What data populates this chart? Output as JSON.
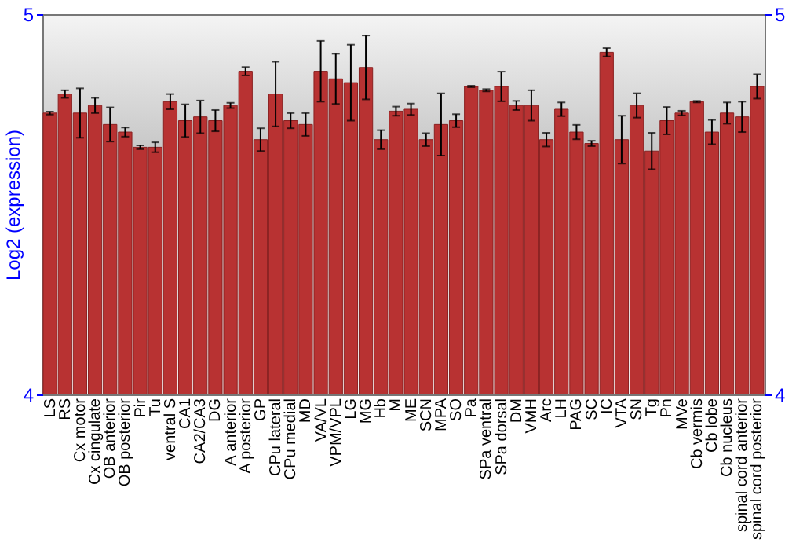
{
  "chart_data": {
    "type": "bar",
    "ylabel": "Log2 (expression)",
    "categories": [
      "LS",
      "RS",
      "Cx motor",
      "Cx cingulate",
      "OB anterior",
      "OB posterior",
      "Pir",
      "Tu",
      "ventral S",
      "CA1",
      "CA2/CA3",
      "DG",
      "A anterior",
      "A posterior",
      "GP",
      "CPu lateral",
      "CPu medial",
      "MD",
      "VA/VL",
      "VPM/VPL",
      "LG",
      "MG",
      "Hb",
      "M",
      "ME",
      "SCN",
      "MPA",
      "SO",
      "Pa",
      "SPa ventral",
      "SPa dorsal",
      "DM",
      "VMH",
      "Arc",
      "LH",
      "PAG",
      "SC",
      "IC",
      "VTA",
      "SN",
      "Tg",
      "Pn",
      "MVe",
      "Cb vermis",
      "Cb lobe",
      "Cb nucleus",
      "spinal cord anterior",
      "spinal cord posterior"
    ],
    "series": [
      {
        "color": "#b83232",
        "values": [
          4.74,
          4.79,
          4.74,
          4.76,
          4.71,
          4.69,
          4.65,
          4.65,
          4.77,
          4.72,
          4.73,
          4.72,
          4.76,
          4.85,
          4.67,
          4.79,
          4.72,
          4.71,
          4.85,
          4.83,
          4.82,
          4.86,
          4.67,
          4.745,
          4.75,
          4.67,
          4.71,
          4.72,
          4.81,
          4.8,
          4.81,
          4.76,
          4.76,
          4.67,
          4.75,
          4.69,
          4.66,
          4.9,
          4.67,
          4.76,
          4.64,
          4.72,
          4.74,
          4.77,
          4.69,
          4.74,
          4.73,
          4.81
        ],
        "errors": [
          0.004,
          0.01,
          0.065,
          0.02,
          0.045,
          0.012,
          0.005,
          0.013,
          0.02,
          0.043,
          0.043,
          0.028,
          0.007,
          0.011,
          0.03,
          0.085,
          0.02,
          0.03,
          0.08,
          0.066,
          0.1,
          0.084,
          0.025,
          0.012,
          0.015,
          0.017,
          0.082,
          0.017,
          0.002,
          0.003,
          0.039,
          0.012,
          0.04,
          0.018,
          0.018,
          0.019,
          0.007,
          0.011,
          0.063,
          0.032,
          0.048,
          0.036,
          0.006,
          0.002,
          0.032,
          0.028,
          0.04,
          0.032
        ]
      }
    ],
    "ylim": [
      4,
      5
    ],
    "yticks": [
      4,
      5
    ],
    "y2lim": [
      4,
      5
    ],
    "y2ticks": [
      4,
      5
    ],
    "grid": false
  }
}
